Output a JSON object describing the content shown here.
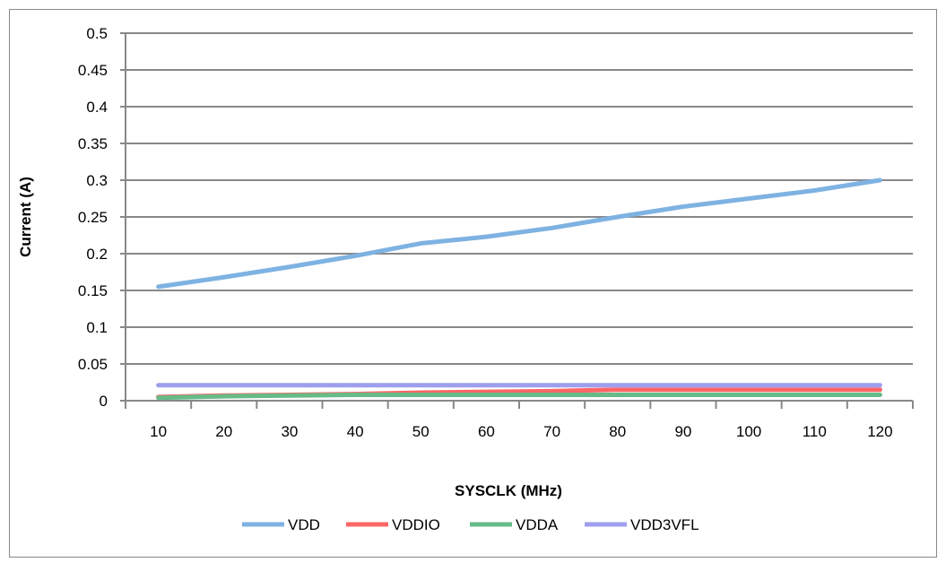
{
  "chart_data": {
    "type": "line",
    "title": "",
    "xlabel": "SYSCLK (MHz)",
    "ylabel": "Current (A)",
    "categories": [
      "10",
      "20",
      "30",
      "40",
      "50",
      "60",
      "70",
      "80",
      "90",
      "100",
      "110",
      "120"
    ],
    "ylim": [
      0,
      0.5
    ],
    "yticks": [
      "0",
      "0.05",
      "0.1",
      "0.15",
      "0.2",
      "0.25",
      "0.3",
      "0.35",
      "0.4",
      "0.45",
      "0.5"
    ],
    "grid": true,
    "legend": "bottom",
    "series": [
      {
        "name": "VDD",
        "color": "#7EB2E2",
        "values": [
          0.155,
          0.168,
          0.182,
          0.197,
          0.214,
          0.223,
          0.235,
          0.25,
          0.264,
          0.275,
          0.286,
          0.3
        ]
      },
      {
        "name": "VDDIO",
        "color": "#FF6666",
        "values": [
          0.005,
          0.007,
          0.008,
          0.009,
          0.011,
          0.012,
          0.013,
          0.015,
          0.015,
          0.015,
          0.015,
          0.015
        ]
      },
      {
        "name": "VDDA",
        "color": "#66BB88",
        "values": [
          0.004,
          0.006,
          0.007,
          0.008,
          0.008,
          0.008,
          0.008,
          0.008,
          0.008,
          0.008,
          0.008,
          0.008
        ]
      },
      {
        "name": "VDD3VFL",
        "color": "#9F9FEF",
        "values": [
          0.021,
          0.021,
          0.021,
          0.021,
          0.021,
          0.021,
          0.021,
          0.021,
          0.021,
          0.021,
          0.021,
          0.021
        ]
      }
    ]
  }
}
